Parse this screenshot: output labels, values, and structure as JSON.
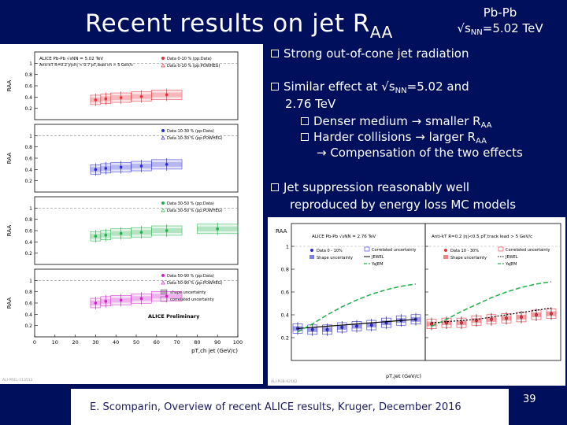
{
  "slide": {
    "title_main": "Recent results on jet R",
    "title_sub": "AA",
    "energy_line1": "Pb-Pb",
    "energy_sqrt": "√s",
    "energy_sub": "NN",
    "energy_value": "=5.02 TeV",
    "footer": "E. Scomparin, Overview of recent ALICE results, Kruger, December 2016",
    "page_number": "39"
  },
  "bullets": [
    {
      "text": "Strong out-of-cone jet radiation"
    },
    {
      "text_a": "Similar effect at √s",
      "sub": "NN",
      "text_b": "=5.02 and"
    },
    {
      "text": "2.76 TeV"
    },
    {
      "text_a": "Denser medium → smaller R",
      "sub": "AA"
    },
    {
      "text_a": "Harder collisions → larger R",
      "sub": "AA"
    },
    {
      "text": "→ Compensation of the two effects"
    },
    {
      "text": "Jet suppression reasonably well"
    },
    {
      "text": "reproduced by energy loss MC models"
    }
  ],
  "colors": {
    "background": "#000f5c",
    "red": "#e8303a",
    "blue": "#2a2ad8",
    "green": "#22b04a",
    "magenta": "#d020c8"
  },
  "chart_data": [
    {
      "type": "scatter",
      "title": "ALICE Pb-Pb √sNN = 5.02 TeV",
      "annotation": "Anti-kT R=0.2 |ηch| < 0.7 pT,lead ch > 5 GeV/c",
      "xlabel": "pT,ch jet (GeV/c)",
      "ylabel": "RAA",
      "xlim": [
        0,
        100
      ],
      "xticks": [
        "0",
        "10",
        "20",
        "30",
        "40",
        "50",
        "60",
        "70",
        "80",
        "90",
        "100"
      ],
      "ylim": [
        0,
        1.2
      ],
      "yticks_labels": [
        "0.2",
        "0.4",
        "0.6",
        "0.8",
        "1"
      ],
      "yticks_values": [
        0.2,
        0.4,
        0.6,
        0.8,
        1.0
      ],
      "preliminary": "ALICE Preliminary",
      "id": "ALI-PREL-113513",
      "legend_shape": "shape uncertainty",
      "legend_corr": "correlated uncertainty",
      "x": [
        30,
        35,
        42.5,
        52.5,
        65,
        90
      ],
      "panels": [
        {
          "name": "0-10%",
          "color": "#e8303a",
          "legend_data": "Data  0-10 % (pp:Data)",
          "legend_mc": "Data  0-10 % (pp:POWHEG)",
          "values": [
            0.35,
            0.37,
            0.39,
            0.41,
            0.44,
            null
          ]
        },
        {
          "name": "10-30%",
          "color": "#2a2ad8",
          "legend_data": "Data 10-30 % (pp:Data)",
          "legend_mc": "Data 10-30 % (pp:POWHEG)",
          "values": [
            0.4,
            0.42,
            0.44,
            0.46,
            0.49,
            null
          ]
        },
        {
          "name": "30-50%",
          "color": "#22b04a",
          "legend_data": "Data 30-50 % (pp:Data)",
          "legend_mc": "Data 30-50 % (pp:POWHEG)",
          "values": [
            0.5,
            0.52,
            0.55,
            0.57,
            0.6,
            0.63
          ]
        },
        {
          "name": "50-90%",
          "color": "#d020c8",
          "legend_data": "Data 50-90 % (pp:Data)",
          "legend_mc": "Data 50-90 % (pp:POWHEG)",
          "values": [
            0.6,
            0.63,
            0.65,
            0.68,
            0.72,
            null
          ]
        }
      ]
    },
    {
      "type": "scatter",
      "title": "ALICE Pb-Pb √sNN = 2.76 TeV",
      "annotation": "Anti-kT R=0.2 |η|<0.5 pT,track lead > 5 GeV/c",
      "xlabel": "pT,jet (GeV/c)",
      "ylabel": "RAA",
      "ylim": [
        0,
        1.2
      ],
      "yticks_labels": [
        "0.2",
        "0.4",
        "0.6",
        "0.8",
        "1"
      ],
      "yticks_values": [
        0.2,
        0.4,
        0.6,
        0.8,
        1.0
      ],
      "id": "ALI-PUB-92182",
      "legend_labels": [
        "Data 0 - 10%",
        "Shape uncertainty",
        "Correlated uncertainty",
        "JEWEL",
        "YaJEM"
      ],
      "legend_labels_right": [
        "Data 10 - 30%",
        "Shape uncertainty",
        "Correlated uncertainty",
        "JEWEL",
        "YaJEM"
      ],
      "panels": [
        {
          "name": "0-10%",
          "color": "#2a2ad8",
          "x": [
            40,
            50,
            60,
            70,
            80,
            90,
            100,
            110,
            120
          ],
          "values": [
            0.28,
            0.27,
            0.27,
            0.29,
            0.3,
            0.31,
            0.33,
            0.35,
            0.36
          ],
          "jewel": [
            0.28,
            0.29,
            0.3,
            0.31,
            0.32,
            0.33,
            0.34,
            0.35,
            0.36
          ],
          "yajem": [
            0.25,
            0.32,
            0.4,
            0.47,
            0.53,
            0.58,
            0.62,
            0.65,
            0.67
          ]
        },
        {
          "name": "10-30%",
          "color": "#e8303a",
          "x": [
            40,
            50,
            60,
            70,
            80,
            90,
            100,
            110,
            120
          ],
          "values": [
            0.32,
            0.33,
            0.33,
            0.35,
            0.36,
            0.37,
            0.38,
            0.4,
            0.41
          ],
          "jewel": [
            0.33,
            0.34,
            0.35,
            0.36,
            0.38,
            0.4,
            0.42,
            0.44,
            0.46
          ],
          "yajem": [
            0.3,
            0.36,
            0.43,
            0.49,
            0.55,
            0.6,
            0.64,
            0.67,
            0.69
          ]
        }
      ]
    }
  ]
}
